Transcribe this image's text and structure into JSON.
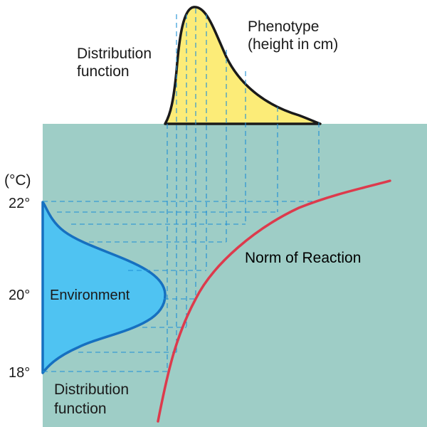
{
  "labels": {
    "top_distribution": [
      "Distribution",
      "function"
    ],
    "phenotype": [
      "Phenotype",
      "(height in cm)"
    ],
    "unit": "(°C)",
    "norm_of_reaction": "Norm of Reaction",
    "environment": "Environment",
    "bottom_distribution": [
      "Distribution",
      "function"
    ]
  },
  "temperature_ticks": [
    "22°",
    "20°",
    "18°"
  ],
  "colors": {
    "plot_background": "#9ecdc6",
    "phenotype_fill": "#fcec78",
    "environment_fill": "#4fc3f2",
    "environment_outline": "#1670c0",
    "norm_curve": "#dd3a4c",
    "grid_lines": "#1e8fd6"
  }
}
